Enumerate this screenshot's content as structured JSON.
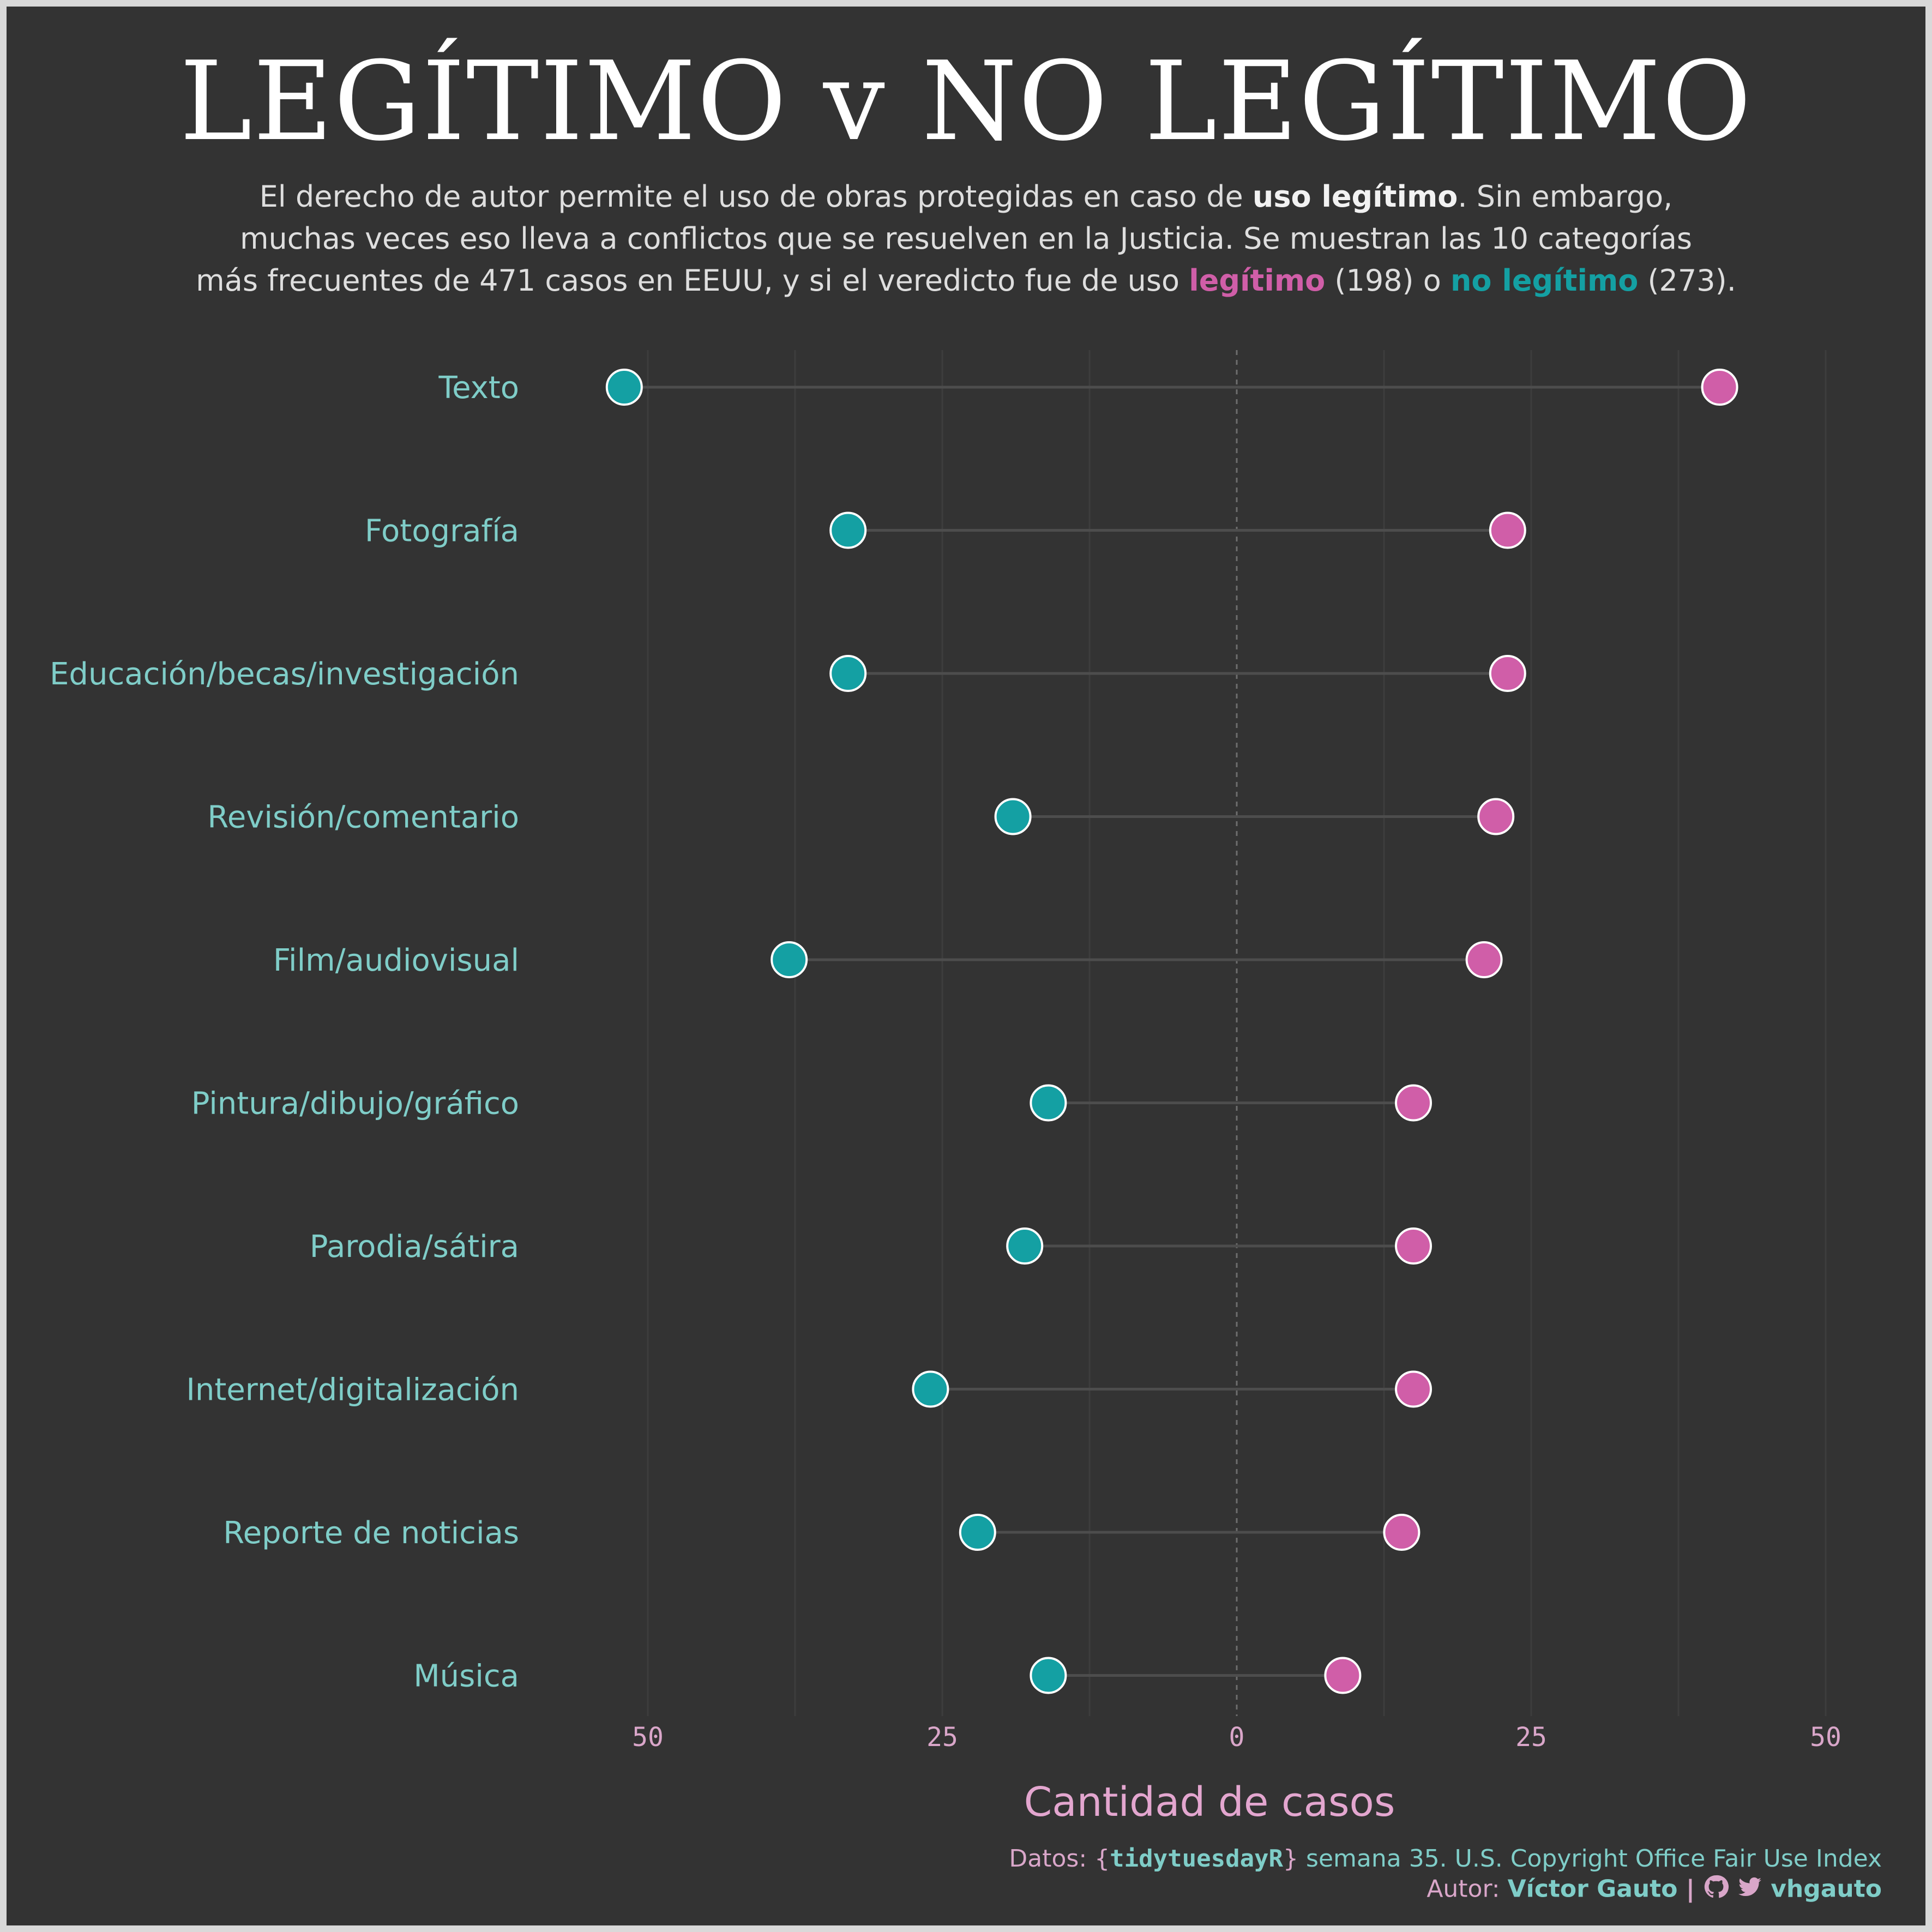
{
  "title": "LEGÍTIMO v NO LEGÍTIMO",
  "subtitle": {
    "line1_a": "El derecho de autor permite el uso de obras protegidas en caso de ",
    "line1_b": "uso legítimo",
    "line1_c": ". Sin embargo,",
    "line2": "muchas veces eso lleva a conflictos que se resuelven en la Justicia. Se muestran las 10 categorías",
    "line3_a": "más frecuentes de 471 casos en EEUU, y si el veredicto fue de uso ",
    "line3_b": "legítimo",
    "line3_c": " (198) o ",
    "line3_d": "no legítimo",
    "line3_e": " (273)."
  },
  "chart_data": {
    "type": "dumbbell",
    "xlabel": "Cantidad de casos",
    "xlim": [
      -60,
      60
    ],
    "x_ticks": [
      -50,
      -25,
      0,
      25,
      50
    ],
    "x_tick_labels": [
      "50",
      "25",
      "0",
      "25",
      "50"
    ],
    "grid": true,
    "categories": [
      "Texto",
      "Fotografía",
      "Educación/becas/investigación",
      "Revisión/comentario",
      "Film/audiovisual",
      "Pintura/dibujo/gráfico",
      "Parodia/sátira",
      "Internet/digitalización",
      "Reporte de noticias",
      "Música"
    ],
    "series": [
      {
        "name": "no legítimo",
        "color": "#14a0a3",
        "values": [
          52,
          33,
          33,
          19,
          38,
          16,
          18,
          26,
          22,
          16
        ]
      },
      {
        "name": "legítimo",
        "color": "#d05ea8",
        "values": [
          41,
          23,
          23,
          22,
          21,
          15,
          15,
          15,
          14,
          9
        ]
      }
    ]
  },
  "caption": {
    "line1_a": "Datos: ",
    "line1_b": "{",
    "line1_c": "tidytuesdayR",
    "line1_d": "}",
    "line1_e": " semana 35. U.S. Copyright Office Fair Use Index",
    "line2_a": "Autor: ",
    "line2_b": "Víctor Gauto",
    "line2_c": " | ",
    "line2_d": "vhgauto"
  },
  "icons": [
    "github-icon",
    "twitter-icon"
  ],
  "colors": {
    "background": "#333333",
    "teal": "#14a0a3",
    "pink": "#d05ea8",
    "label_teal": "#7fcdc8",
    "label_pink": "#d9a6c9"
  }
}
